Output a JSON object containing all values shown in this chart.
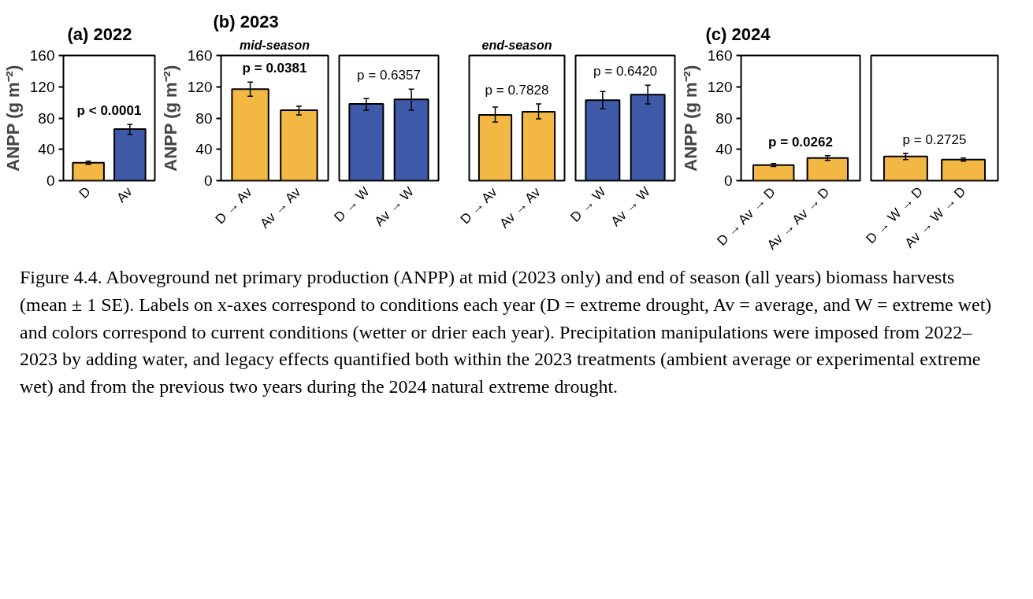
{
  "chart_data": [
    {
      "type": "bar",
      "title": "(a) 2022",
      "ylabel": "ANPP (g m⁻²)",
      "categories": [
        "D",
        "Av"
      ],
      "values": [
        23,
        66
      ],
      "errors": [
        [
          21,
          25
        ],
        [
          59,
          72
        ]
      ],
      "colors": [
        "#f2b843",
        "#3f5aa8"
      ],
      "ylim": [
        0,
        160
      ],
      "yticks": [
        0,
        40,
        80,
        120,
        160
      ],
      "grid": false,
      "annotations": [
        "p < 0.0001",
        "Figure 4.4. Aboveground net primary production (ANPP) at mid (2023 only) and end of season (all years) biomass harvests (mean ± 1 SE).  Labels on x-axes correspond to conditions each year (D = extreme drought, Av = average, and W = extreme wet) and colors correspond to current conditions (wetter or drier each year). Precipitation manipulations were imposed from 2022–2023 by adding water, and legacy effects quantified both within the 2023 treatments (ambient average or experimental extreme wet) and from the previous two years during the 2024 natural extreme drought."
      ]
    },
    {
      "type": "bar",
      "title": "(b) 2023",
      "subtitle": "mid-season",
      "ylabel": "ANPP (g m⁻²)",
      "categories": [
        "D → Av",
        "Av → Av"
      ],
      "values": [
        117,
        90
      ],
      "errors": [
        [
          108,
          126
        ],
        [
          84,
          95
        ]
      ],
      "colors": [
        "#f2b843",
        "#f2b843"
      ],
      "ylim": [
        0,
        160
      ],
      "yticks": [
        0,
        40,
        80,
        120,
        160
      ],
      "grid": false,
      "annotations": [
        "p = 0.0381"
      ]
    },
    {
      "type": "bar",
      "categories": [
        "D → W",
        "Av → W"
      ],
      "values": [
        98,
        104
      ],
      "errors": [
        [
          90,
          105
        ],
        [
          90,
          117
        ]
      ],
      "colors": [
        "#3f5aa8",
        "#3f5aa8"
      ],
      "ylim": [
        0,
        160
      ],
      "yticks": [
        0,
        40,
        80,
        120,
        160
      ],
      "grid": false,
      "tick_labels": "x",
      "annotations": [
        "p = 0.6357"
      ]
    },
    {
      "type": "bar",
      "subtitle": "end-season",
      "categories": [
        "D → Av",
        "Av → Av"
      ],
      "values": [
        84,
        88
      ],
      "errors": [
        [
          75,
          94
        ],
        [
          79,
          98
        ]
      ],
      "colors": [
        "#f2b843",
        "#f2b843"
      ],
      "ylim": [
        0,
        160
      ],
      "yticks": [
        0,
        40,
        80,
        120,
        160
      ],
      "grid": false,
      "tick_labels": "x",
      "annotations": [
        "p = 0.7828"
      ]
    },
    {
      "type": "bar",
      "categories": [
        "D → W",
        "Av → W"
      ],
      "values": [
        103,
        110
      ],
      "errors": [
        [
          92,
          114
        ],
        [
          98,
          122
        ]
      ],
      "colors": [
        "#3f5aa8",
        "#3f5aa8"
      ],
      "ylim": [
        0,
        160
      ],
      "yticks": [
        0,
        40,
        80,
        120,
        160
      ],
      "grid": false,
      "tick_labels": "x",
      "annotations": [
        "p = 0.6420"
      ]
    },
    {
      "type": "bar",
      "title": "(c) 2024",
      "ylabel": "ANPP (g m⁻²)",
      "categories": [
        "D → Av → D",
        "Av → Av → D"
      ],
      "values": [
        20,
        29
      ],
      "errors": [
        [
          18,
          22
        ],
        [
          26,
          32
        ]
      ],
      "colors": [
        "#f2b843",
        "#f2b843"
      ],
      "ylim": [
        0,
        160
      ],
      "yticks": [
        0,
        40,
        80,
        120,
        160
      ],
      "grid": false,
      "annotations": [
        "p = 0.0262"
      ]
    },
    {
      "type": "bar",
      "categories": [
        "D → W → D",
        "Av → W → D"
      ],
      "values": [
        31,
        27
      ],
      "errors": [
        [
          27,
          35
        ],
        [
          25,
          29
        ]
      ],
      "colors": [
        "#f2b843",
        "#f2b843"
      ],
      "ylim": [
        0,
        160
      ],
      "yticks": [
        0,
        40,
        80,
        120,
        160
      ],
      "grid": false,
      "tick_labels": "x",
      "annotations": [
        "p = 0.2725"
      ]
    }
  ]
}
